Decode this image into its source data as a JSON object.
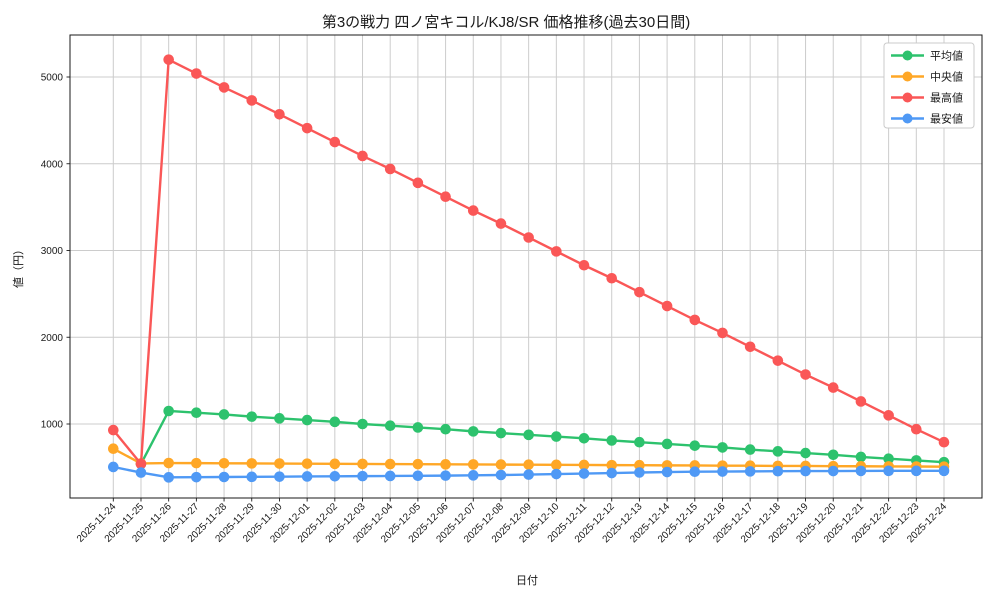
{
  "chart_data": {
    "type": "line",
    "title": "第3の戦力 四ノ宮キコル/KJ8/SR 価格推移(過去30日間)",
    "xlabel": "日付",
    "ylabel": "値（円）",
    "grid": true,
    "legend_position": "upper right",
    "yticks": [
      1000,
      2000,
      3000,
      4000,
      5000
    ],
    "ylim": [
      145,
      5485
    ],
    "x_categories": [
      "2025-11-24",
      "2025-11-25",
      "2025-11-26",
      "2025-11-27",
      "2025-11-28",
      "2025-11-29",
      "2025-11-30",
      "2025-12-01",
      "2025-12-02",
      "2025-12-03",
      "2025-12-04",
      "2025-12-05",
      "2025-12-06",
      "2025-12-07",
      "2025-12-08",
      "2025-12-09",
      "2025-12-10",
      "2025-12-11",
      "2025-12-12",
      "2025-12-13",
      "2025-12-14",
      "2025-12-15",
      "2025-12-16",
      "2025-12-17",
      "2025-12-18",
      "2025-12-19",
      "2025-12-20",
      "2025-12-21",
      "2025-12-22",
      "2025-12-23",
      "2025-12-24"
    ],
    "series": [
      {
        "key": "average",
        "name": "平均値",
        "color": "#2dc26d",
        "values": [
          null,
          540,
          1150,
          1130,
          1110,
          1085,
          1065,
          1045,
          1025,
          1000,
          980,
          960,
          940,
          915,
          895,
          875,
          855,
          835,
          810,
          790,
          770,
          750,
          730,
          705,
          685,
          665,
          645,
          620,
          600,
          580,
          560
        ]
      },
      {
        "key": "median",
        "name": "中央値",
        "color": "#ffa726",
        "values": [
          715,
          545,
          550,
          549,
          547,
          546,
          544,
          543,
          541,
          540,
          538,
          537,
          535,
          534,
          532,
          531,
          529,
          528,
          526,
          525,
          523,
          522,
          520,
          519,
          517,
          516,
          514,
          513,
          511,
          510,
          508
        ]
      },
      {
        "key": "highest",
        "name": "最高値",
        "color": "#fa5757",
        "values": [
          930,
          540,
          5200,
          5040,
          4880,
          4730,
          4570,
          4410,
          4250,
          4090,
          3940,
          3780,
          3620,
          3460,
          3310,
          3150,
          2990,
          2830,
          2680,
          2520,
          2360,
          2200,
          2050,
          1890,
          1730,
          1570,
          1420,
          1260,
          1100,
          940,
          790
        ]
      },
      {
        "key": "lowest",
        "name": "最安値",
        "color": "#4f99f5",
        "values": [
          505,
          440,
          385,
          387,
          389,
          391,
          393,
          395,
          397,
          399,
          401,
          403,
          405,
          408,
          412,
          417,
          423,
          429,
          435,
          441,
          446,
          450,
          452,
          454,
          456,
          457,
          458,
          459,
          460,
          460,
          460
        ]
      }
    ],
    "style": {
      "grid_color": "#cccccc",
      "spine_color": "#1a1a1a",
      "text_color": "#1a1a1a",
      "background": "#ffffff",
      "legend_border": "#cbcbcb"
    }
  }
}
